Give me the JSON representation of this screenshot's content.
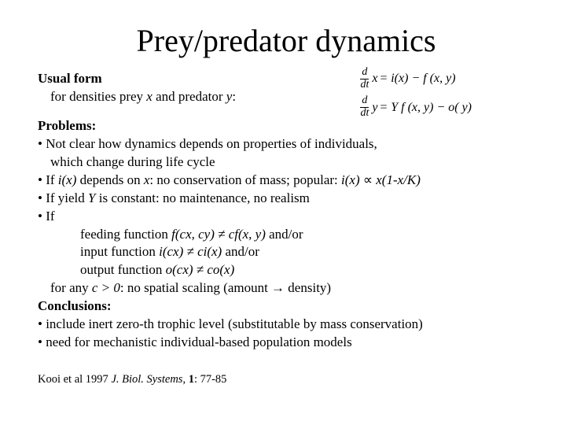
{
  "title": "Prey/predator dynamics",
  "usual_form": {
    "heading": "Usual form",
    "line": "for densities prey ",
    "x": "x",
    "and": " and predator ",
    "y": "y",
    "colon": ":"
  },
  "equations": {
    "eq1": {
      "d": "d",
      "dt": "dt",
      "var": "x",
      "rest": " = i(x) − f (x, y)"
    },
    "eq2": {
      "d": "d",
      "dt": "dt",
      "var": "y",
      "rest": " = Y f (x, y) − o( y)"
    }
  },
  "problems": {
    "heading": "Problems:",
    "b1a": "• Not clear how dynamics depends on properties of individuals,",
    "b1b": "which change during life cycle",
    "b2_pre": "• If ",
    "b2_ix": "i(x)",
    "b2_mid": " depends on ",
    "b2_x": "x",
    "b2_post": ": no conservation of mass; popular: ",
    "b2_ix2": "i(x)",
    "b2_prop": " ∝ ",
    "b2_expr": "x(1-x/K)",
    "b3_pre": "• If yield ",
    "b3_Y": "Y",
    "b3_post": " is constant: no maintenance, no realism",
    "b4": "• If",
    "b4a_pre": "feeding function ",
    "b4a_fn": "f(cx, cy) ≠ cf(x, y)",
    "b4a_post": " and/or",
    "b4b_pre": "input function ",
    "b4b_fn": "i(cx) ≠ ci(x)",
    "b4b_post": " and/or",
    "b4c_pre": "output function ",
    "b4c_fn": "o(cx) ≠ co(x)",
    "b4d_pre": "for any ",
    "b4d_c": "c > 0",
    "b4d_post": ": no spatial scaling (amount → density)"
  },
  "conclusions": {
    "heading": "Conclusions:",
    "c1": "• include inert zero-th trophic level (substitutable by mass conservation)",
    "c2": "• need for mechanistic individual-based  population models"
  },
  "reference": {
    "pre": "Kooi et al 1997 ",
    "journal": "J. Biol. Systems",
    "mid": ", ",
    "vol": "1",
    "post": ": 77-85"
  }
}
